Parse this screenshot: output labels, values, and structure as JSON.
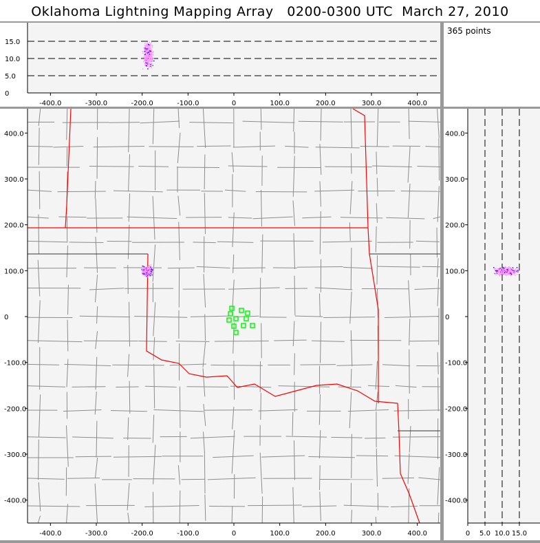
{
  "title": "Oklahoma Lightning Mapping Array   0200-0300 UTC  March 27, 2010",
  "point_count_label": "365 points",
  "colors": {
    "border_state": "#ff0000",
    "county": "#8c8c8c",
    "station": "#00ff00",
    "source_low": "#ff99ff",
    "source_high": "#3300ff",
    "panel_bg": "#f4f4f4",
    "frame": "#999999"
  },
  "chart_data": [
    {
      "type": "scatter",
      "name": "plan-view",
      "xlim": [
        -450,
        450
      ],
      "ylim": [
        -450,
        450
      ],
      "xticks": [
        "-400.0",
        "-300.0",
        "-200.0",
        "-100.0",
        "0",
        "100.0",
        "200.0",
        "300.0",
        "400.0"
      ],
      "yticks": [
        "400.0",
        "300.0",
        "200.0",
        "100.0",
        "0",
        "-100.0",
        "-200.0",
        "-300.0",
        "-400.0"
      ],
      "source_cluster": {
        "x_center": -190,
        "y_center": 100,
        "x_spread": 15,
        "y_spread": 15,
        "count": 365
      },
      "stations": [
        [
          -4.5,
          18
        ],
        [
          -7.5,
          6
        ],
        [
          16.5,
          13.5
        ],
        [
          30,
          7.5
        ],
        [
          -10.5,
          -7.5
        ],
        [
          4.5,
          -4.5
        ],
        [
          27,
          -4.5
        ],
        [
          0,
          -21
        ],
        [
          21,
          -19.5
        ],
        [
          40.5,
          -19.5
        ],
        [
          4.5,
          -34.5
        ]
      ]
    },
    {
      "type": "scatter",
      "name": "east-west-vs-altitude",
      "xlim": [
        -450,
        450
      ],
      "ylim": [
        0,
        20
      ],
      "xticks": [
        "-400.0",
        "-300.0",
        "-200.0",
        "-100.0",
        "0",
        "100.0",
        "200.0",
        "300.0",
        "400.0"
      ],
      "yticks": [
        "15.0",
        "10.0",
        "5.0",
        "0"
      ],
      "gridlines": [
        5,
        10,
        15
      ],
      "source_cluster": {
        "x_center": -188,
        "alt_min": 3.5,
        "alt_max": 17,
        "alt_center": 11
      }
    },
    {
      "type": "scatter",
      "name": "altitude-vs-north-south",
      "xlim": [
        0,
        20
      ],
      "ylim": [
        -450,
        450
      ],
      "xticks": [
        "0",
        "5.0",
        "10.0",
        "15.0"
      ],
      "yticks": [
        "400.0",
        "300.0",
        "200.0",
        "100.0",
        "0",
        "-100.0",
        "-200.0",
        "-300.0",
        "-400.0"
      ],
      "gridlines": [
        5,
        10,
        15
      ],
      "source_cluster": {
        "y_center": 100,
        "alt_min": 3.5,
        "alt_max": 17,
        "alt_center": 11
      }
    }
  ]
}
